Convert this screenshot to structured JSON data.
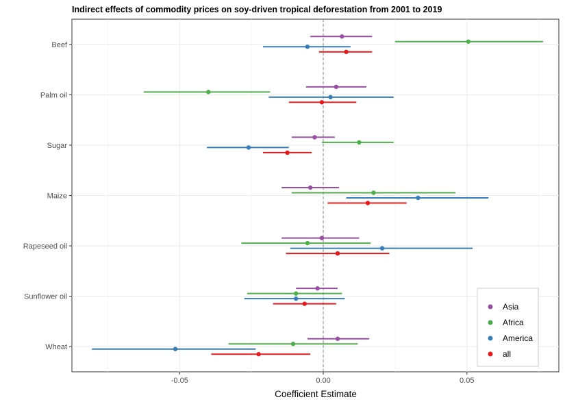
{
  "chart_data": {
    "type": "forest",
    "title": "Indirect effects of commodity prices on soy-driven tropical deforestation from 2001 to 2019",
    "xlabel": "Coefficient Estimate",
    "ylabel": "",
    "xlim": [
      -0.0875,
      0.082
    ],
    "xticks": [
      -0.05,
      0,
      0.05
    ],
    "xtick_labels": [
      "-0.05",
      "0.00",
      "0.05"
    ],
    "reference_line": 0,
    "grid": true,
    "legend_position": "bottom-right",
    "categories": [
      "Beef",
      "Palm oil",
      "Sugar",
      "Maize",
      "Rapeseed oil",
      "Sunflower oil",
      "Wheat"
    ],
    "series": [
      {
        "name": "Asia",
        "color": "#984EA3",
        "estimates": [
          0.0065,
          0.0045,
          -0.003,
          -0.0045,
          -0.0005,
          -0.002,
          0.005
        ],
        "ci_low": [
          -0.0045,
          -0.006,
          -0.011,
          -0.0145,
          -0.0145,
          -0.0095,
          -0.0055
        ],
        "ci_high": [
          0.017,
          0.015,
          0.004,
          0.0055,
          0.0125,
          0.005,
          0.016
        ]
      },
      {
        "name": "Africa",
        "color": "#4DAF4A",
        "estimates": [
          0.0505,
          -0.04,
          0.0125,
          0.0175,
          -0.0055,
          -0.0095,
          -0.0105
        ],
        "ci_low": [
          0.025,
          -0.0625,
          -0.0005,
          -0.011,
          -0.0285,
          -0.0265,
          -0.033
        ],
        "ci_high": [
          0.0765,
          -0.0185,
          0.0245,
          0.046,
          0.0165,
          0.0065,
          0.012
        ]
      },
      {
        "name": "America",
        "color": "#377EB8",
        "estimates": [
          -0.0055,
          0.0025,
          -0.026,
          0.033,
          0.0205,
          -0.0095,
          -0.0515
        ],
        "ci_low": [
          -0.021,
          -0.019,
          -0.0405,
          0.008,
          -0.0115,
          -0.0275,
          -0.0805
        ],
        "ci_high": [
          0.0095,
          0.0245,
          -0.012,
          0.0575,
          0.052,
          0.0075,
          -0.0235
        ]
      },
      {
        "name": "all",
        "color": "#E41A1C",
        "estimates": [
          0.008,
          -0.0005,
          -0.0125,
          0.0155,
          0.005,
          -0.0065,
          -0.0225
        ],
        "ci_low": [
          -0.0015,
          -0.012,
          -0.021,
          0.0015,
          -0.013,
          -0.0175,
          -0.039
        ],
        "ci_high": [
          0.017,
          0.0115,
          -0.004,
          0.029,
          0.023,
          0.0045,
          -0.0045
        ]
      }
    ]
  }
}
